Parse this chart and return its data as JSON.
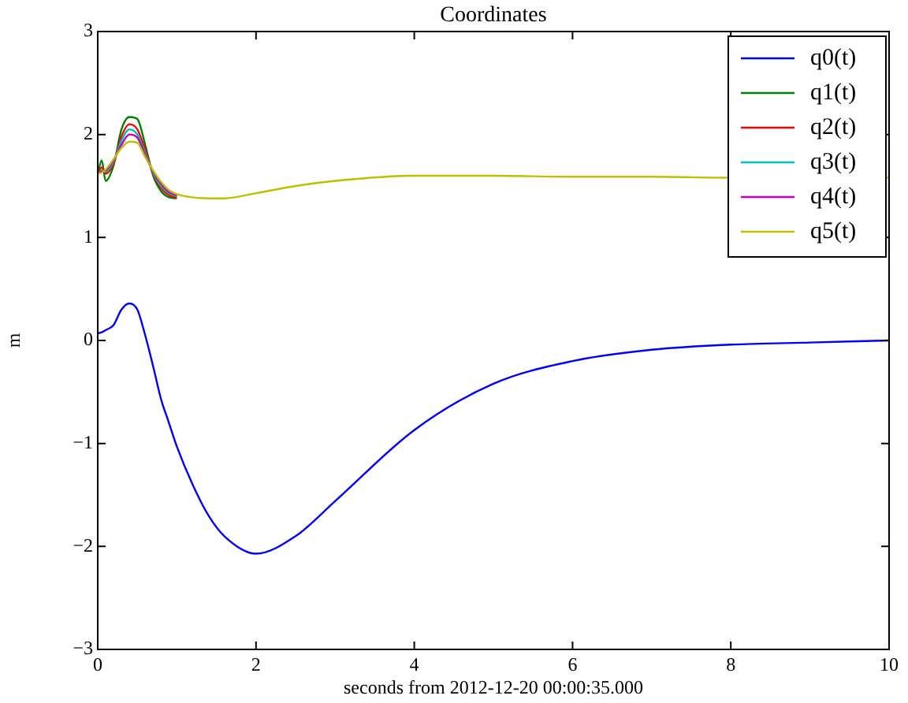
{
  "chart_data": {
    "type": "line",
    "title": "Coordinates",
    "xlabel": "seconds from 2012-12-20 00:00:35.000",
    "ylabel": "m",
    "x": [
      0,
      0.05,
      0.1,
      0.2,
      0.3,
      0.4,
      0.5,
      0.6,
      0.7,
      0.8,
      0.9,
      1.0,
      1.2,
      1.4,
      1.6,
      2.0,
      2.5,
      3,
      4,
      5,
      6,
      7,
      8,
      9,
      10
    ],
    "series": [
      {
        "name": "q0(t)",
        "color": "#0000ff",
        "values": [
          0.07,
          0.08,
          0.1,
          0.15,
          0.3,
          0.36,
          0.3,
          0.05,
          -0.25,
          -0.57,
          -0.8,
          -1.03,
          -1.4,
          -1.7,
          -1.9,
          -2.07,
          -1.9,
          -1.56,
          -0.87,
          -0.42,
          -0.2,
          -0.09,
          -0.04,
          -0.02,
          0
        ]
      },
      {
        "name": "q1(t)",
        "color": "#008000",
        "values": [
          1.62,
          1.75,
          1.55,
          1.7,
          2.05,
          2.17,
          2.15,
          1.9,
          1.6,
          1.45,
          1.39,
          1.38,
          null,
          null,
          null,
          null,
          null,
          null,
          null,
          null,
          null,
          null,
          null,
          null,
          null
        ]
      },
      {
        "name": "q2(t)",
        "color": "#ff0000",
        "values": [
          1.62,
          1.68,
          1.62,
          1.72,
          1.98,
          2.1,
          2.05,
          1.85,
          1.62,
          1.48,
          1.41,
          1.39,
          null,
          null,
          null,
          null,
          null,
          null,
          null,
          null,
          null,
          null,
          null,
          null,
          null
        ]
      },
      {
        "name": "q3(t)",
        "color": "#00bfbf",
        "values": [
          1.62,
          1.65,
          1.64,
          1.74,
          1.94,
          2.05,
          2.0,
          1.82,
          1.63,
          1.5,
          1.43,
          1.4,
          null,
          null,
          null,
          null,
          null,
          null,
          null,
          null,
          null,
          null,
          null,
          null,
          null
        ]
      },
      {
        "name": "q4(t)",
        "color": "#bf00bf",
        "values": [
          1.62,
          1.64,
          1.65,
          1.75,
          1.9,
          2.0,
          1.97,
          1.8,
          1.64,
          1.52,
          1.44,
          1.41,
          null,
          null,
          null,
          null,
          null,
          null,
          null,
          null,
          null,
          null,
          null,
          null,
          null
        ]
      },
      {
        "name": "q5(t)",
        "color": "#bfbf00",
        "values": [
          1.62,
          1.63,
          1.66,
          1.76,
          1.87,
          1.93,
          1.92,
          1.78,
          1.65,
          1.54,
          1.46,
          1.42,
          1.39,
          1.38,
          1.38,
          1.43,
          1.5,
          1.55,
          1.6,
          1.6,
          1.59,
          1.59,
          1.58,
          null,
          1.58
        ]
      }
    ],
    "xlim": [
      0,
      10
    ],
    "xticks": [
      0,
      2,
      4,
      6,
      8,
      10
    ],
    "ylim": [
      -3,
      3
    ],
    "yticks": [
      {
        "value": -3,
        "label": "−3"
      },
      {
        "value": -2,
        "label": "−2"
      },
      {
        "value": -1,
        "label": "−1"
      },
      0,
      1,
      2,
      3
    ],
    "grid": false,
    "legend": "top right",
    "marker": "none",
    "line_style": "solid"
  }
}
